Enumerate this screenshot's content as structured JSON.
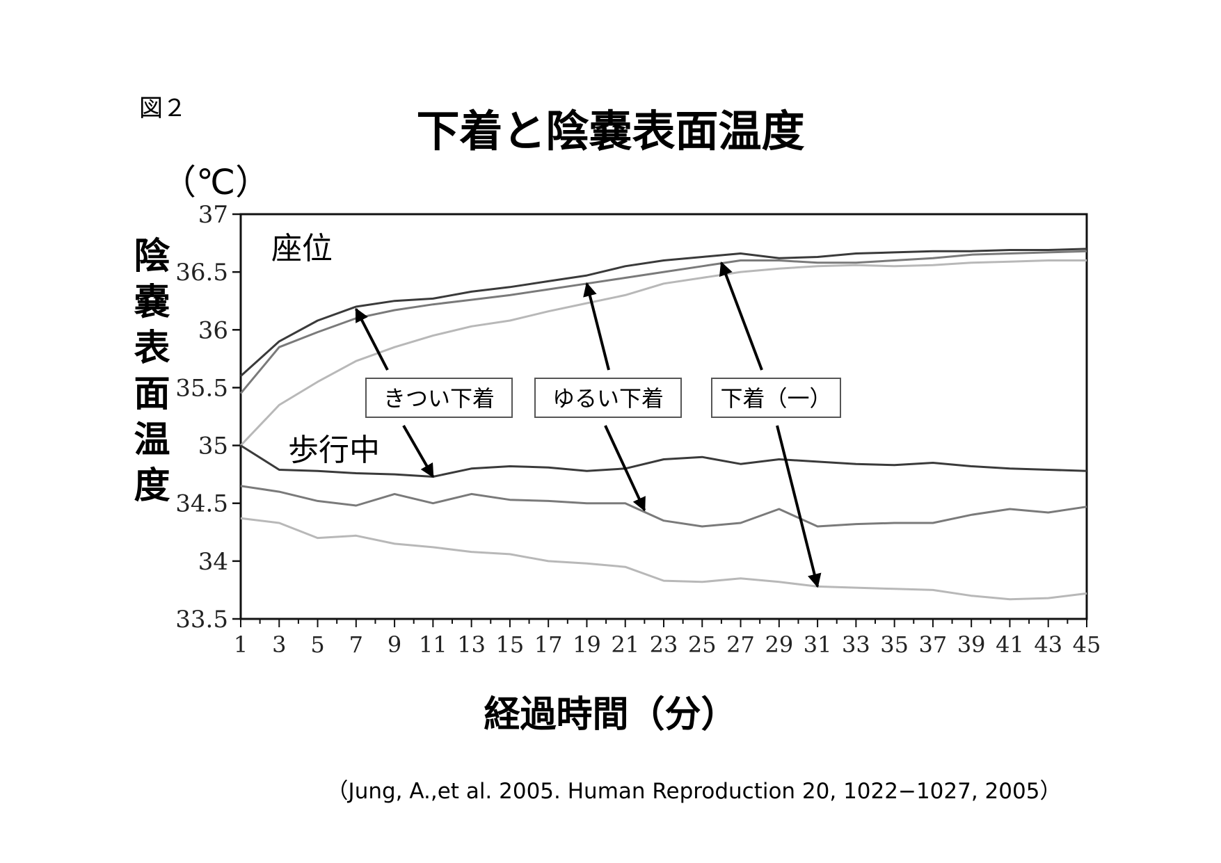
{
  "figure_label": "図２",
  "title": "下着と陰嚢表面温度",
  "unit": "（℃）",
  "ylabel": "陰嚢表面温度",
  "xlabel": "経過時間（分）",
  "citation": "（Jung, A.,et al. 2005. Human Reproduction 20, 1022−1027, 2005）",
  "chart_data": {
    "type": "line",
    "xlim": [
      1,
      45
    ],
    "ylim": [
      33.5,
      37
    ],
    "yticks": [
      "33.5",
      "34",
      "34.5",
      "35",
      "35.5",
      "36",
      "36.5",
      "37"
    ],
    "xticks": [
      "1",
      "3",
      "5",
      "7",
      "9",
      "11",
      "13",
      "15",
      "17",
      "19",
      "21",
      "23",
      "25",
      "27",
      "29",
      "31",
      "33",
      "35",
      "37",
      "39",
      "41",
      "43",
      "45"
    ],
    "x": [
      1,
      3,
      5,
      7,
      9,
      11,
      13,
      15,
      17,
      19,
      21,
      23,
      25,
      27,
      29,
      31,
      33,
      35,
      37,
      39,
      41,
      43,
      45
    ],
    "grid": false,
    "series_colors": [
      "#3a3a3a",
      "#7a7a7a",
      "#b8b8b8"
    ],
    "groups": [
      {
        "label": "座位",
        "series": [
          {
            "name": "きつい下着",
            "values": [
              35.6,
              35.9,
              36.08,
              36.2,
              36.25,
              36.27,
              36.33,
              36.37,
              36.42,
              36.47,
              36.55,
              36.6,
              36.63,
              36.66,
              36.62,
              36.63,
              36.66,
              36.67,
              36.68,
              36.68,
              36.69,
              36.69,
              36.7
            ]
          },
          {
            "name": "ゆるい下着",
            "values": [
              35.45,
              35.85,
              35.98,
              36.1,
              36.17,
              36.22,
              36.26,
              36.3,
              36.35,
              36.4,
              36.45,
              36.5,
              36.55,
              36.6,
              36.6,
              36.58,
              36.58,
              36.6,
              36.62,
              36.65,
              36.66,
              36.67,
              36.68
            ]
          },
          {
            "name": "下着（一）",
            "values": [
              35.0,
              35.35,
              35.55,
              35.73,
              35.85,
              35.95,
              36.03,
              36.08,
              36.16,
              36.23,
              36.3,
              36.4,
              36.45,
              36.5,
              36.53,
              36.55,
              36.56,
              36.55,
              36.56,
              36.58,
              36.59,
              36.6,
              36.6
            ]
          }
        ]
      },
      {
        "label": "歩行中",
        "series": [
          {
            "name": "きつい下着",
            "values": [
              35.0,
              34.79,
              34.78,
              34.76,
              34.75,
              34.73,
              34.8,
              34.82,
              34.81,
              34.78,
              34.8,
              34.88,
              34.9,
              34.84,
              34.88,
              34.86,
              34.84,
              34.83,
              34.85,
              34.82,
              34.8,
              34.79,
              34.78
            ]
          },
          {
            "name": "ゆるい下着",
            "values": [
              34.65,
              34.6,
              34.52,
              34.48,
              34.58,
              34.5,
              34.58,
              34.53,
              34.52,
              34.5,
              34.5,
              34.35,
              34.3,
              34.33,
              34.45,
              34.3,
              34.32,
              34.33,
              34.33,
              34.4,
              34.45,
              34.42,
              34.47
            ]
          },
          {
            "name": "下着（一）",
            "values": [
              34.37,
              34.33,
              34.2,
              34.22,
              34.15,
              34.12,
              34.08,
              34.06,
              34.0,
              33.98,
              33.95,
              33.83,
              33.82,
              33.85,
              33.82,
              33.78,
              33.77,
              33.76,
              33.75,
              33.7,
              33.67,
              33.68,
              33.72
            ]
          }
        ]
      }
    ],
    "annotations": [
      {
        "text": "きつい下着",
        "arrows_to": [
          [
            7,
            36.18
          ],
          [
            11,
            34.73
          ]
        ]
      },
      {
        "text": "ゆるい下着",
        "arrows_to": [
          [
            19,
            36.4
          ],
          [
            22,
            34.44
          ]
        ]
      },
      {
        "text": "下着（一）",
        "arrows_to": [
          [
            26,
            36.58
          ],
          [
            31,
            33.78
          ]
        ]
      }
    ]
  }
}
